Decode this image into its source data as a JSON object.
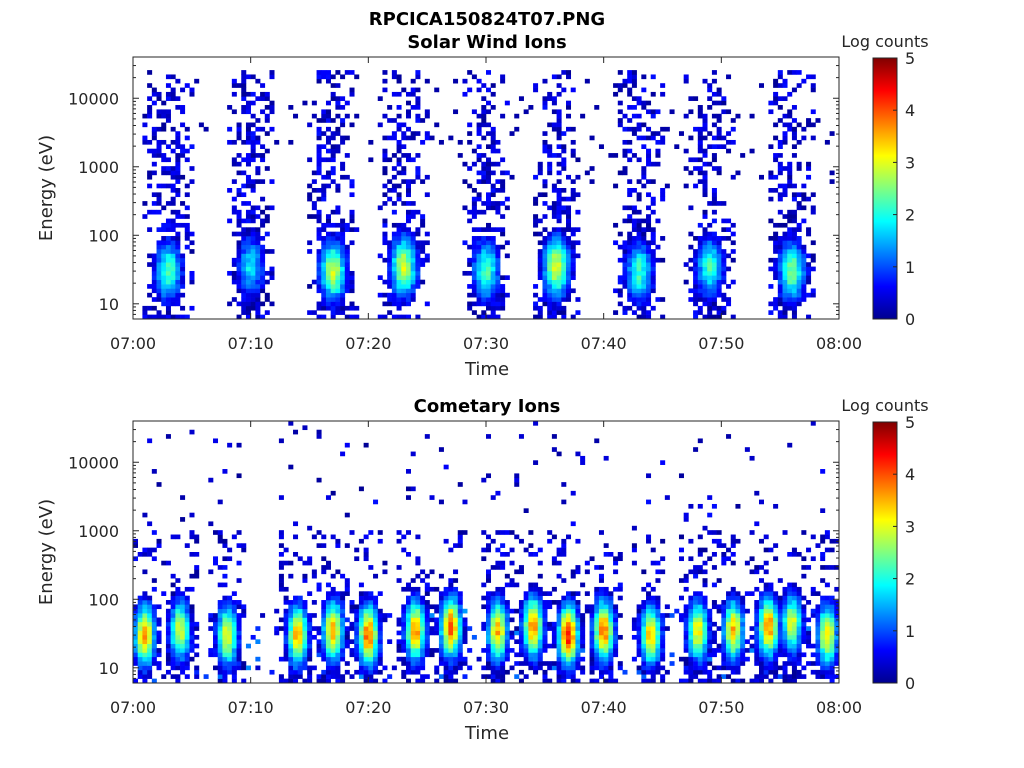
{
  "figure": {
    "title": "RPCICA150824T07.PNG"
  },
  "colormap": {
    "name": "jet",
    "min": 0,
    "max": 5
  },
  "chart_data": [
    {
      "type": "heatmap",
      "title": "Solar Wind Ions",
      "xlabel": "Time",
      "ylabel": "Energy (eV)",
      "x_ticks": [
        "07:00",
        "07:10",
        "07:20",
        "07:30",
        "07:40",
        "07:50",
        "08:00"
      ],
      "x_range": [
        "07:00",
        "08:00"
      ],
      "y_scale": "log",
      "y_range": [
        6,
        40000
      ],
      "y_ticks": [
        "10",
        "100",
        "1000",
        "10000"
      ],
      "colorbar_label": "Log counts",
      "colorbar_ticks": [
        "0",
        "1",
        "2",
        "3",
        "4",
        "5"
      ],
      "colorbar_range": [
        0,
        5
      ],
      "bursts": [
        {
          "center_time": "07:03",
          "peak_energy_eV": 30,
          "peak_log_counts": 2.3
        },
        {
          "center_time": "07:10",
          "peak_energy_eV": 35,
          "peak_log_counts": 1.8
        },
        {
          "center_time": "07:17",
          "peak_energy_eV": 30,
          "peak_log_counts": 2.9
        },
        {
          "center_time": "07:23",
          "peak_energy_eV": 35,
          "peak_log_counts": 2.9
        },
        {
          "center_time": "07:30",
          "peak_energy_eV": 30,
          "peak_log_counts": 2.3
        },
        {
          "center_time": "07:36",
          "peak_energy_eV": 35,
          "peak_log_counts": 3.0
        },
        {
          "center_time": "07:43",
          "peak_energy_eV": 30,
          "peak_log_counts": 2.2
        },
        {
          "center_time": "07:49",
          "peak_energy_eV": 35,
          "peak_log_counts": 2.2
        },
        {
          "center_time": "07:56",
          "peak_energy_eV": 30,
          "peak_log_counts": 2.5
        }
      ]
    },
    {
      "type": "heatmap",
      "title": "Cometary Ions",
      "xlabel": "Time",
      "ylabel": "Energy (eV)",
      "x_ticks": [
        "07:00",
        "07:10",
        "07:20",
        "07:30",
        "07:40",
        "07:50",
        "08:00"
      ],
      "x_range": [
        "07:00",
        "08:00"
      ],
      "y_scale": "log",
      "y_range": [
        6,
        40000
      ],
      "y_ticks": [
        "10",
        "100",
        "1000",
        "10000"
      ],
      "colorbar_label": "Log counts",
      "colorbar_ticks": [
        "0",
        "1",
        "2",
        "3",
        "4",
        "5"
      ],
      "colorbar_range": [
        0,
        5
      ],
      "bursts": [
        {
          "center_time": "07:01",
          "peak_energy_eV": 30,
          "peak_log_counts": 3.7
        },
        {
          "center_time": "07:04",
          "peak_energy_eV": 35,
          "peak_log_counts": 3.0
        },
        {
          "center_time": "07:08",
          "peak_energy_eV": 30,
          "peak_log_counts": 3.2
        },
        {
          "center_time": "07:14",
          "peak_energy_eV": 30,
          "peak_log_counts": 3.6
        },
        {
          "center_time": "07:17",
          "peak_energy_eV": 35,
          "peak_log_counts": 3.6
        },
        {
          "center_time": "07:20",
          "peak_energy_eV": 30,
          "peak_log_counts": 4.0
        },
        {
          "center_time": "07:24",
          "peak_energy_eV": 35,
          "peak_log_counts": 3.7
        },
        {
          "center_time": "07:27",
          "peak_energy_eV": 40,
          "peak_log_counts": 4.0
        },
        {
          "center_time": "07:31",
          "peak_energy_eV": 35,
          "peak_log_counts": 3.5
        },
        {
          "center_time": "07:34",
          "peak_energy_eV": 40,
          "peak_log_counts": 3.8
        },
        {
          "center_time": "07:37",
          "peak_energy_eV": 30,
          "peak_log_counts": 4.3
        },
        {
          "center_time": "07:40",
          "peak_energy_eV": 35,
          "peak_log_counts": 3.9
        },
        {
          "center_time": "07:44",
          "peak_energy_eV": 30,
          "peak_log_counts": 3.4
        },
        {
          "center_time": "07:48",
          "peak_energy_eV": 35,
          "peak_log_counts": 3.2
        },
        {
          "center_time": "07:51",
          "peak_energy_eV": 35,
          "peak_log_counts": 3.5
        },
        {
          "center_time": "07:54",
          "peak_energy_eV": 40,
          "peak_log_counts": 3.8
        },
        {
          "center_time": "07:56",
          "peak_energy_eV": 45,
          "peak_log_counts": 3.0
        },
        {
          "center_time": "07:59",
          "peak_energy_eV": 30,
          "peak_log_counts": 3.3
        }
      ]
    }
  ]
}
